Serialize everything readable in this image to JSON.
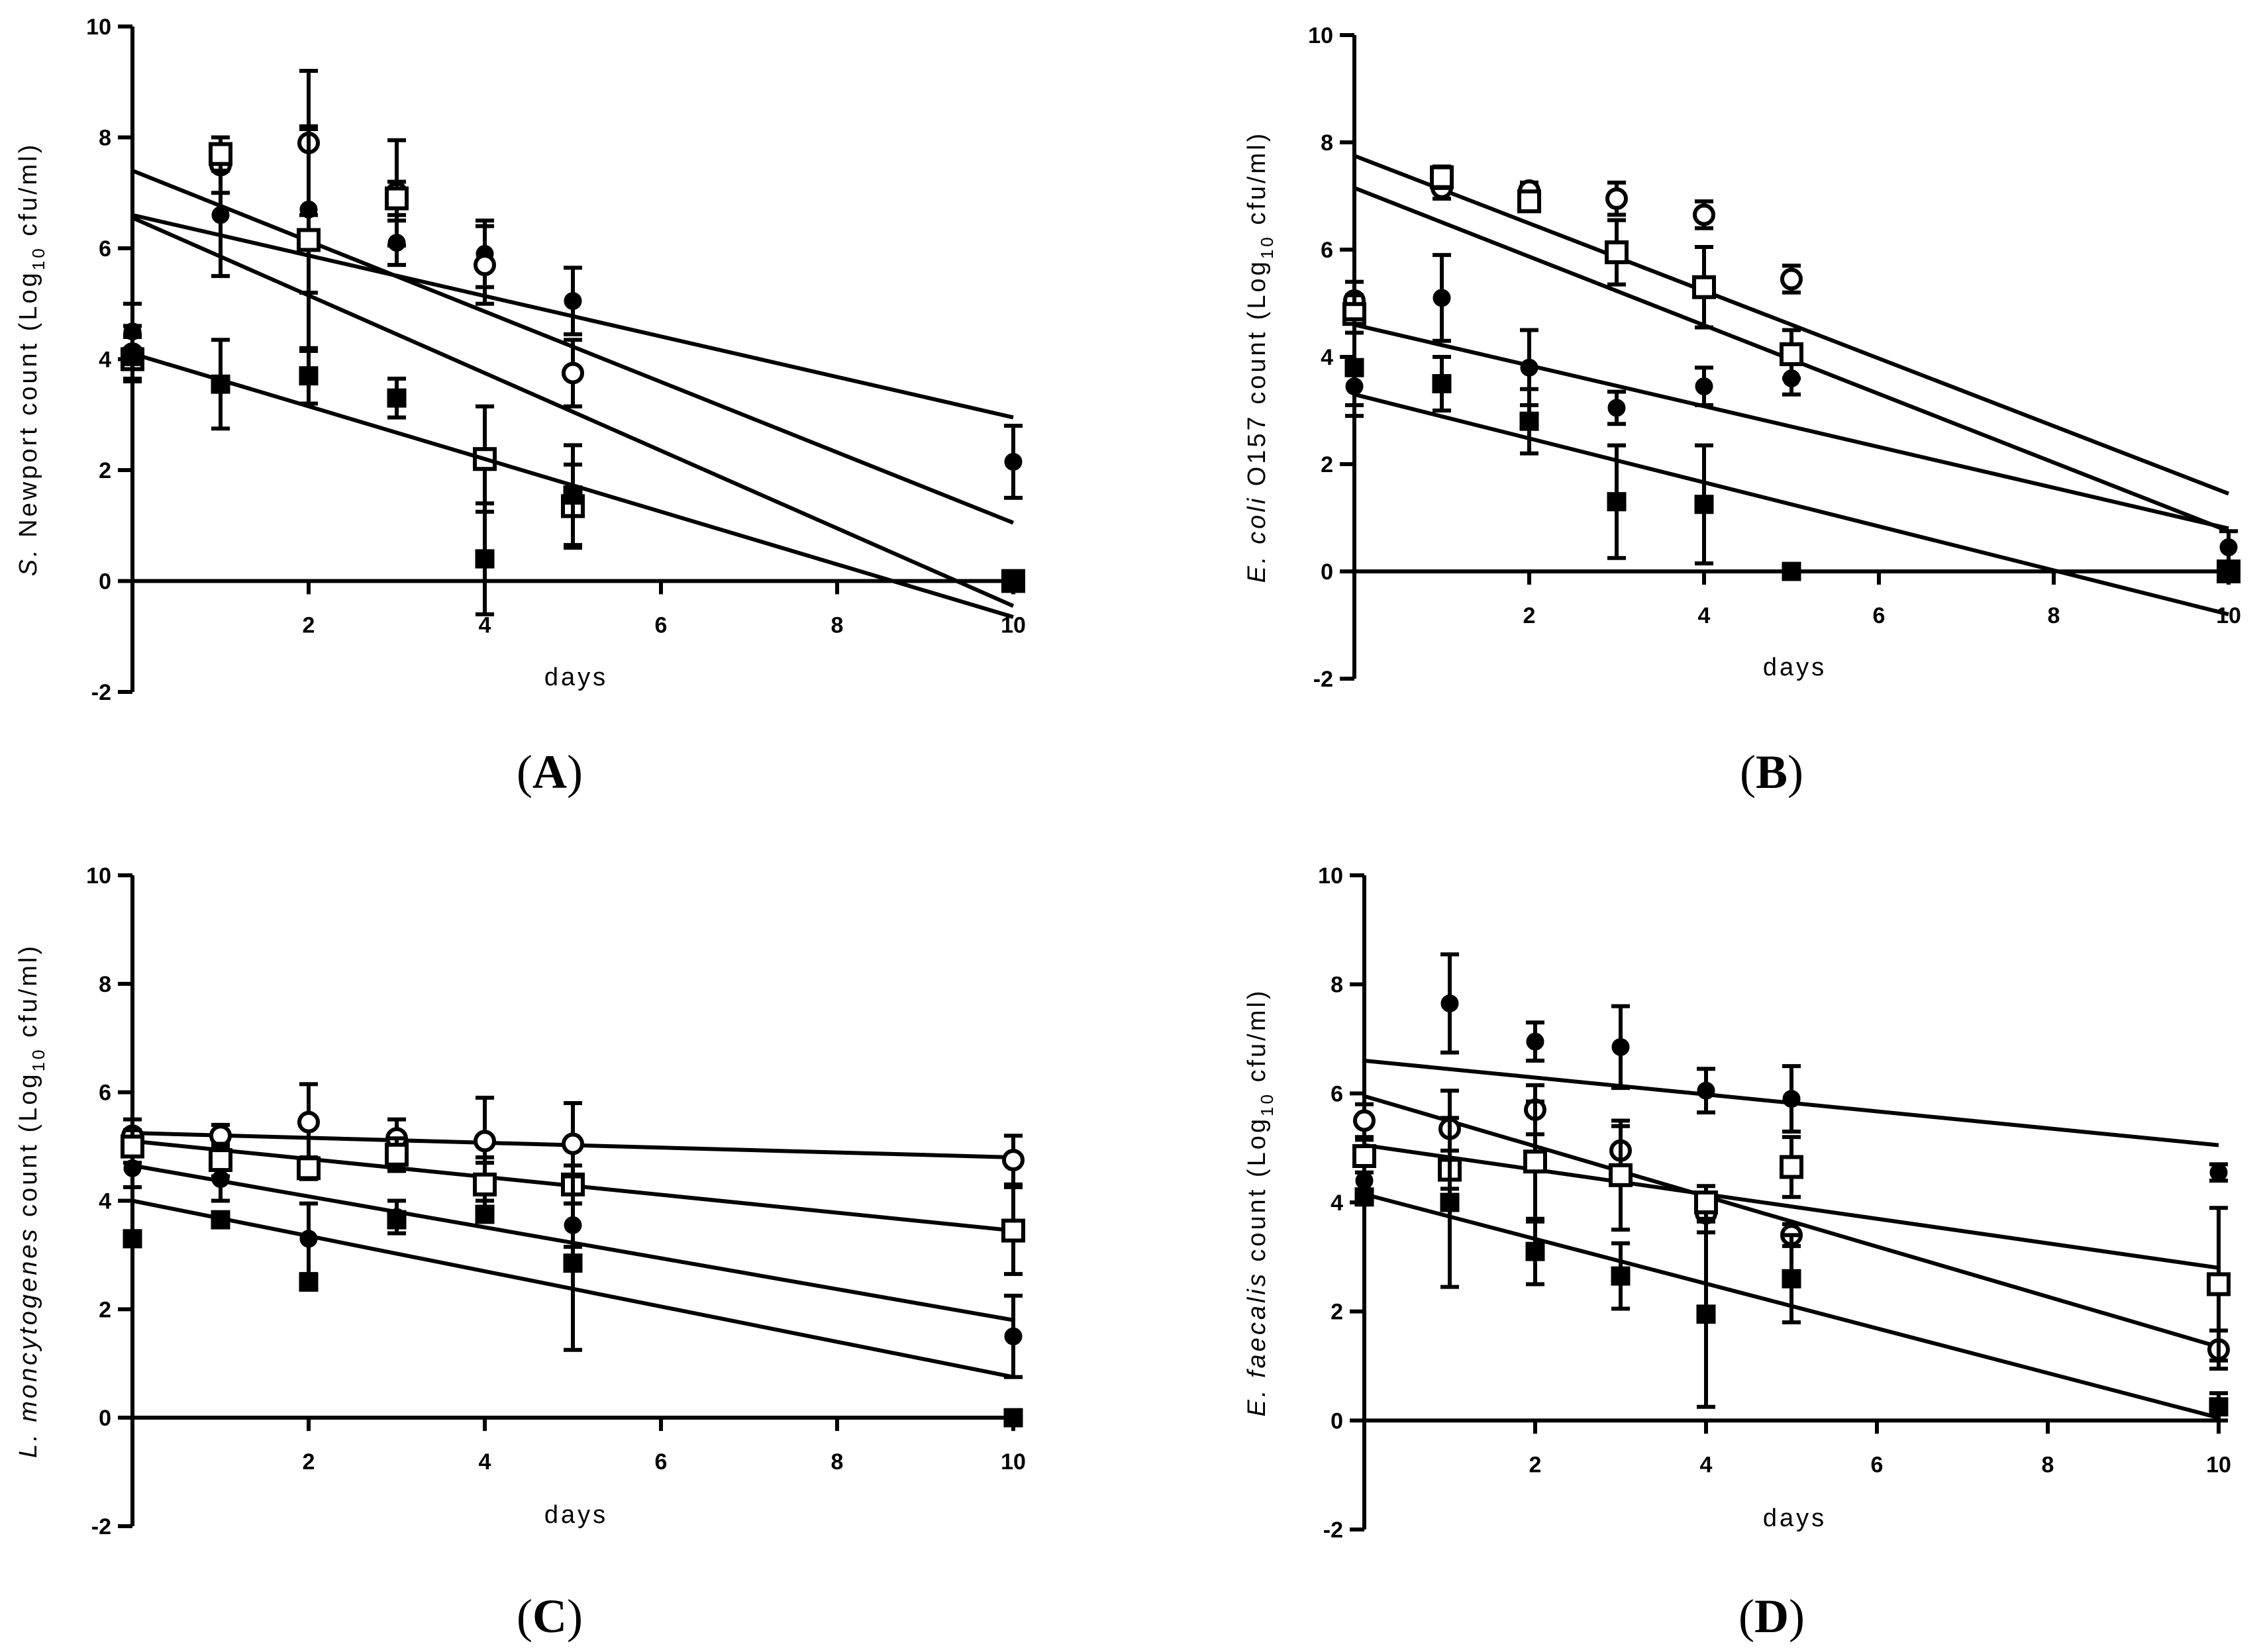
{
  "chart_data": [
    {
      "type": "scatter",
      "panel": "A",
      "xlabel": "days",
      "ylabel": {
        "italic": "S.",
        "rest": " Newport count (Log",
        "sub": "10",
        "tail": " cfu/ml)"
      },
      "xlim": [
        0,
        10
      ],
      "ylim": [
        -2,
        10
      ],
      "xticks": [
        "2",
        "4",
        "6",
        "8",
        "10"
      ],
      "yticks": [
        "-2",
        "0",
        "2",
        "4",
        "6",
        "8",
        "10"
      ],
      "series": [
        {
          "name": "filled circle",
          "marker": "circle",
          "filled": true,
          "points": [
            [
              0,
              4.5,
              0.5
            ],
            [
              1,
              6.6,
              1.1
            ],
            [
              2,
              6.7,
              1.5
            ],
            [
              3,
              6.1,
              0.4
            ],
            [
              4,
              5.9,
              0.6
            ],
            [
              5,
              5.05,
              0.6
            ],
            [
              10,
              2.15,
              0.65
            ]
          ],
          "trend": [
            [
              0,
              6.6
            ],
            [
              10,
              2.95
            ]
          ]
        },
        {
          "name": "open circle",
          "marker": "circle",
          "filled": false,
          "points": [
            [
              0,
              4.1,
              0.5
            ],
            [
              1,
              7.5,
              0.5
            ],
            [
              2,
              7.9,
              1.3
            ],
            [
              3,
              7.0,
              0.95
            ],
            [
              4,
              5.7,
              0.7
            ],
            [
              5,
              3.75,
              0.6
            ],
            [
              10,
              0.0,
              0.0
            ]
          ],
          "trend": [
            [
              0,
              7.4
            ],
            [
              10,
              1.05
            ]
          ]
        },
        {
          "name": "open square",
          "marker": "square",
          "filled": false,
          "points": [
            [
              0,
              4.0,
              0.4
            ],
            [
              1,
              7.7,
              0.3
            ],
            [
              2,
              6.15,
              2.0
            ],
            [
              3,
              6.9,
              0.3
            ],
            [
              4,
              2.2,
              0.95
            ],
            [
              5,
              1.35,
              0.75
            ],
            [
              10,
              0.0,
              0.0
            ]
          ],
          "trend": [
            [
              0,
              6.55
            ],
            [
              10,
              -0.45
            ]
          ]
        },
        {
          "name": "filled square",
          "marker": "square",
          "filled": true,
          "points": [
            [
              0,
              4.05,
              0.4
            ],
            [
              1,
              3.55,
              0.8
            ],
            [
              2,
              3.7,
              0.5
            ],
            [
              3,
              3.3,
              0.35
            ],
            [
              4,
              0.4,
              1.0
            ],
            [
              5,
              1.55,
              0.9
            ],
            [
              10,
              0.0,
              0.0
            ]
          ],
          "trend": [
            [
              0,
              4.1
            ],
            [
              10,
              -0.65
            ]
          ]
        }
      ]
    },
    {
      "type": "scatter",
      "panel": "B",
      "xlabel": "days",
      "ylabel": {
        "italic": "E. coli",
        "rest": " O157 count (Log",
        "sub": "10",
        "tail": " cfu/ml)"
      },
      "xlim": [
        0,
        10
      ],
      "ylim": [
        -2,
        10
      ],
      "xticks": [
        "2",
        "4",
        "6",
        "8",
        "10"
      ],
      "yticks": [
        "-2",
        "0",
        "2",
        "4",
        "6",
        "8",
        "10"
      ],
      "series": [
        {
          "name": "filled circle",
          "marker": "circle",
          "filled": true,
          "points": [
            [
              0,
              3.45,
              0.35
            ],
            [
              1,
              5.1,
              0.8
            ],
            [
              2,
              3.8,
              0.7
            ],
            [
              3,
              3.05,
              0.3
            ],
            [
              4,
              3.45,
              0.35
            ],
            [
              5,
              3.6,
              0.3
            ],
            [
              10,
              0.45,
              0.3
            ]
          ],
          "trend": [
            [
              0,
              4.6
            ],
            [
              10,
              0.8
            ]
          ]
        },
        {
          "name": "open circle",
          "marker": "circle",
          "filled": false,
          "points": [
            [
              0,
              5.05,
              0.35
            ],
            [
              1,
              7.15,
              0.2
            ],
            [
              2,
              7.1,
              0.15
            ],
            [
              3,
              6.95,
              0.3
            ],
            [
              4,
              6.65,
              0.25
            ],
            [
              5,
              5.45,
              0.25
            ],
            [
              10,
              0.0,
              0.0
            ]
          ],
          "trend": [
            [
              0,
              7.75
            ],
            [
              10,
              1.45
            ]
          ]
        },
        {
          "name": "open square",
          "marker": "square",
          "filled": false,
          "points": [
            [
              0,
              4.8,
              0.35
            ],
            [
              1,
              7.35,
              0.2
            ],
            [
              2,
              6.9,
              0.15
            ],
            [
              3,
              5.95,
              0.6
            ],
            [
              4,
              5.3,
              0.75
            ],
            [
              5,
              4.05,
              0.45
            ],
            [
              10,
              0.0,
              0.0
            ]
          ],
          "trend": [
            [
              0,
              7.15
            ],
            [
              10,
              0.75
            ]
          ]
        },
        {
          "name": "filled square",
          "marker": "square",
          "filled": true,
          "points": [
            [
              0,
              3.8,
              0.9
            ],
            [
              1,
              3.5,
              0.5
            ],
            [
              2,
              2.8,
              0.6
            ],
            [
              3,
              1.3,
              1.05
            ],
            [
              4,
              1.25,
              1.1
            ],
            [
              5,
              0.0,
              0.0
            ],
            [
              10,
              0.0,
              0.0
            ]
          ],
          "trend": [
            [
              0,
              3.3
            ],
            [
              10,
              -0.8
            ]
          ]
        }
      ]
    },
    {
      "type": "scatter",
      "panel": "C",
      "xlabel": "days",
      "ylabel": {
        "italic": "L. moncytogenes",
        "rest": " count (Log",
        "sub": "10",
        "tail": " cfu/ml)"
      },
      "xlim": [
        0,
        10
      ],
      "ylim": [
        -2,
        10
      ],
      "xticks": [
        "2",
        "4",
        "6",
        "8",
        "10"
      ],
      "yticks": [
        "-2",
        "0",
        "2",
        "4",
        "6",
        "8",
        "10"
      ],
      "series": [
        {
          "name": "filled circle",
          "marker": "circle",
          "filled": true,
          "points": [
            [
              0,
              4.6,
              0.35
            ],
            [
              1,
              4.4,
              0.4
            ],
            [
              2,
              3.3,
              0.65
            ],
            [
              3,
              3.7,
              0.3
            ],
            [
              4,
              4.35,
              0.35
            ],
            [
              5,
              3.55,
              0.4
            ],
            [
              10,
              1.5,
              0.75
            ]
          ],
          "trend": [
            [
              0,
              4.65
            ],
            [
              10,
              1.8
            ]
          ]
        },
        {
          "name": "open circle",
          "marker": "circle",
          "filled": false,
          "points": [
            [
              0,
              5.2,
              0.3
            ],
            [
              1,
              5.2,
              0.2
            ],
            [
              2,
              5.45,
              0.7
            ],
            [
              3,
              5.15,
              0.35
            ],
            [
              4,
              5.1,
              0.8
            ],
            [
              5,
              5.05,
              0.75
            ],
            [
              10,
              4.75,
              0.45
            ]
          ],
          "trend": [
            [
              0,
              5.25
            ],
            [
              10,
              4.8
            ]
          ]
        },
        {
          "name": "open square",
          "marker": "square",
          "filled": false,
          "points": [
            [
              0,
              5.0,
              0.3
            ],
            [
              1,
              4.75,
              0.3
            ],
            [
              2,
              4.6,
              0.2
            ],
            [
              3,
              4.85,
              0.3
            ],
            [
              4,
              4.3,
              0.5
            ],
            [
              5,
              4.3,
              0.35
            ],
            [
              10,
              3.45,
              0.8
            ]
          ],
          "trend": [
            [
              0,
              5.1
            ],
            [
              10,
              3.45
            ]
          ]
        },
        {
          "name": "filled square",
          "marker": "square",
          "filled": true,
          "points": [
            [
              0,
              3.3,
              0.0
            ],
            [
              1,
              3.65,
              0.0
            ],
            [
              2,
              2.5,
              0.0
            ],
            [
              3,
              3.65,
              0.0
            ],
            [
              4,
              3.75,
              0.0
            ],
            [
              5,
              2.85,
              1.6
            ],
            [
              10,
              0.0,
              0.0
            ]
          ],
          "trend": [
            [
              0,
              4.0
            ],
            [
              10,
              0.75
            ]
          ]
        }
      ]
    },
    {
      "type": "scatter",
      "panel": "D",
      "xlabel": "days",
      "ylabel": {
        "italic": "E. faecalis",
        "rest": " count (Log",
        "sub": "10",
        "tail": " cfu/ml)"
      },
      "xlim": [
        0,
        10
      ],
      "ylim": [
        -2,
        10
      ],
      "xticks": [
        "2",
        "4",
        "6",
        "8",
        "10"
      ],
      "yticks": [
        "-2",
        "0",
        "2",
        "4",
        "6",
        "8",
        "10"
      ],
      "series": [
        {
          "name": "filled circle",
          "marker": "circle",
          "filled": true,
          "points": [
            [
              0,
              4.4,
              0.3
            ],
            [
              1,
              7.65,
              0.9
            ],
            [
              2,
              6.95,
              0.35
            ],
            [
              3,
              6.85,
              0.75
            ],
            [
              4,
              6.05,
              0.4
            ],
            [
              5,
              5.9,
              0.6
            ],
            [
              10,
              4.55,
              0.15
            ]
          ],
          "trend": [
            [
              0,
              6.6
            ],
            [
              10,
              5.05
            ]
          ]
        },
        {
          "name": "open circle",
          "marker": "circle",
          "filled": false,
          "points": [
            [
              0,
              5.5,
              0.3
            ],
            [
              1,
              5.35,
              0.7
            ],
            [
              2,
              5.7,
              0.45
            ],
            [
              3,
              4.95,
              0.45
            ],
            [
              4,
              3.8,
              0.35
            ],
            [
              5,
              3.4,
              0.2
            ],
            [
              10,
              1.3,
              0.35
            ]
          ],
          "trend": [
            [
              0,
              5.95
            ],
            [
              10,
              1.35
            ]
          ]
        },
        {
          "name": "open square",
          "marker": "square",
          "filled": false,
          "points": [
            [
              0,
              4.85,
              0.3
            ],
            [
              1,
              4.6,
              0.35
            ],
            [
              2,
              4.75,
              1.1
            ],
            [
              3,
              4.5,
              1.0
            ],
            [
              4,
              4.0,
              0.3
            ],
            [
              5,
              4.65,
              0.55
            ],
            [
              10,
              2.5,
              1.4
            ]
          ],
          "trend": [
            [
              0,
              5.05
            ],
            [
              10,
              2.8
            ]
          ]
        },
        {
          "name": "filled square",
          "marker": "square",
          "filled": true,
          "points": [
            [
              0,
              4.1,
              0.0
            ],
            [
              1,
              4.0,
              1.55
            ],
            [
              2,
              3.1,
              0.6
            ],
            [
              3,
              2.65,
              0.6
            ],
            [
              4,
              1.95,
              1.7
            ],
            [
              5,
              2.6,
              0.8
            ],
            [
              10,
              0.25,
              0.25
            ]
          ],
          "trend": [
            [
              0,
              4.15
            ],
            [
              10,
              0.05
            ]
          ]
        }
      ]
    }
  ]
}
